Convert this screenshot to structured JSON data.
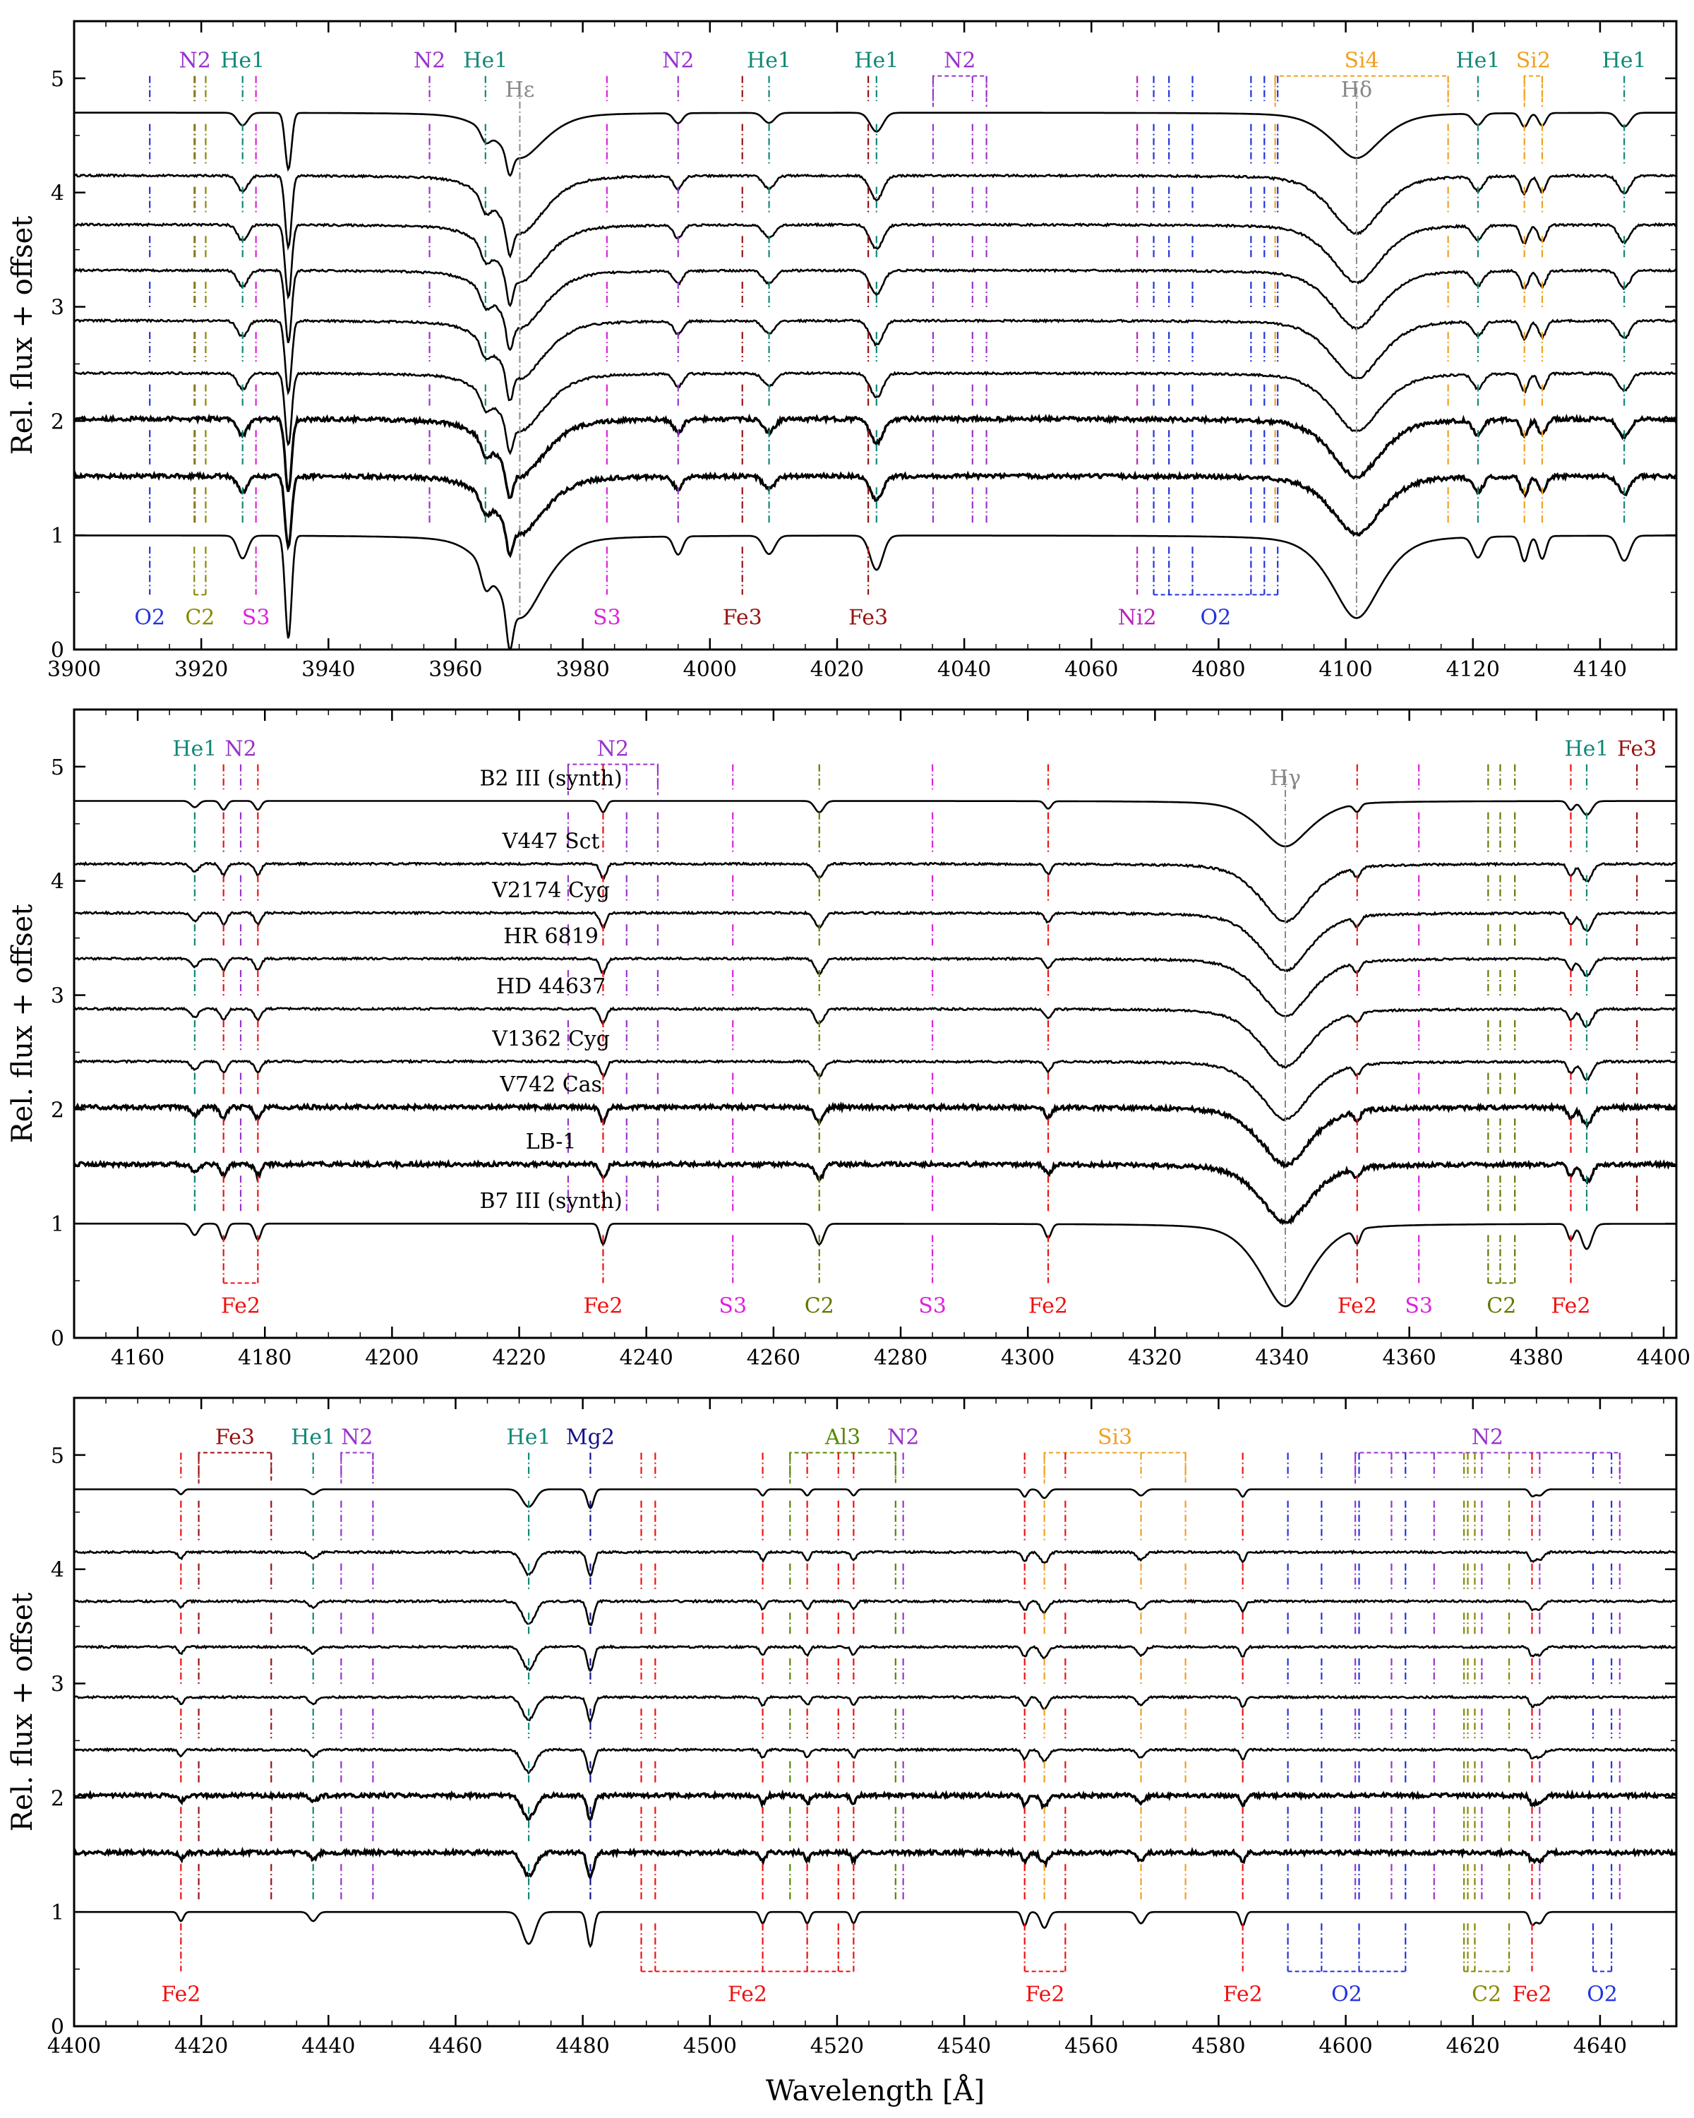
{
  "figure": {
    "x_axis_label": "Wavelength [Å]",
    "y_axis_label": "Rel. flux + offset"
  },
  "chart_data": [
    {
      "type": "line",
      "panel": "top",
      "xlim": [
        3900,
        4152
      ],
      "ylim": [
        0,
        5.5
      ],
      "xticks": [
        3900,
        3920,
        3940,
        3960,
        3980,
        4000,
        4020,
        4040,
        4060,
        4080,
        4100,
        4120,
        4140
      ],
      "yticks": [
        0,
        1,
        2,
        3,
        4,
        5
      ],
      "ylabel": "Rel. flux + offset",
      "spectrum_offsets": [
        4.7,
        4.15,
        3.72,
        3.32,
        2.88,
        2.42,
        2.02,
        1.52,
        1.0
      ],
      "balmer_lines": [
        {
          "label": "Hε",
          "x": 3970.1,
          "label_y": 4.95
        },
        {
          "label": "Hδ",
          "x": 4101.7,
          "label_y": 4.95
        }
      ],
      "top_labels": [
        {
          "label": "N2",
          "color": "#9933cc",
          "lines": [
            3919.0
          ]
        },
        {
          "label": "He1",
          "color": "#118877",
          "lines": [
            3926.5
          ]
        },
        {
          "label": "N2",
          "color": "#9933cc",
          "lines": [
            3955.9
          ]
        },
        {
          "label": "He1",
          "color": "#118877",
          "lines": [
            3964.7
          ]
        },
        {
          "label": "N2",
          "color": "#9933cc",
          "lines": [
            3995.0
          ]
        },
        {
          "label": "He1",
          "color": "#118877",
          "lines": [
            4009.3
          ]
        },
        {
          "label": "He1",
          "color": "#118877",
          "lines": [
            4026.2
          ]
        },
        {
          "label": "N2",
          "color": "#9933cc",
          "lines": [
            4035.1,
            4041.3,
            4043.5
          ]
        },
        {
          "label": "Si4",
          "color": "#f0a020",
          "lines": [
            4088.9,
            4116.1
          ]
        },
        {
          "label": "He1",
          "color": "#118877",
          "lines": [
            4120.8
          ]
        },
        {
          "label": "Si2",
          "color": "#f0a020",
          "lines": [
            4128.1,
            4130.9
          ]
        },
        {
          "label": "He1",
          "color": "#118877",
          "lines": [
            4143.8
          ]
        }
      ],
      "bottom_labels": [
        {
          "label": "O2",
          "color": "#2233dd",
          "lines": [
            3911.9
          ]
        },
        {
          "label": "C2",
          "color": "#888800",
          "lines": [
            3918.9,
            3920.7
          ]
        },
        {
          "label": "S3",
          "color": "#dd22dd",
          "lines": [
            3928.6
          ]
        },
        {
          "label": "S3",
          "color": "#dd22dd",
          "lines": [
            3983.8
          ]
        },
        {
          "label": "Fe3",
          "color": "#991111",
          "lines": [
            4005.1
          ]
        },
        {
          "label": "Fe3",
          "color": "#991111",
          "lines": [
            4024.9
          ]
        },
        {
          "label": "Ni2",
          "color": "#bb22bb",
          "lines": [
            4067.2
          ]
        },
        {
          "label": "O2",
          "color": "#2233dd",
          "lines": [
            4069.8,
            4072.2,
            4075.9,
            4085.1,
            4087.2,
            4089.3
          ]
        }
      ],
      "features": [
        {
          "x": 3933.7,
          "depth": 0.9,
          "width": 0.5
        },
        {
          "x": 3968.5,
          "depth": 0.35,
          "width": 0.5
        },
        {
          "x": 3926.5,
          "depth": 0.2,
          "width": 0.8
        },
        {
          "x": 3964.7,
          "depth": 0.18,
          "width": 0.7
        },
        {
          "x": 4009.3,
          "depth": 0.16,
          "width": 0.9
        },
        {
          "x": 4026.2,
          "depth": 0.3,
          "width": 1.0
        },
        {
          "x": 4120.8,
          "depth": 0.18,
          "width": 0.8
        },
        {
          "x": 4143.8,
          "depth": 0.22,
          "width": 0.9
        },
        {
          "x": 3995.0,
          "depth": 0.16,
          "width": 0.7
        },
        {
          "x": 4128.1,
          "depth": 0.22,
          "width": 0.6
        },
        {
          "x": 4130.9,
          "depth": 0.2,
          "width": 0.6
        }
      ]
    },
    {
      "type": "line",
      "panel": "middle",
      "xlim": [
        4150,
        4402
      ],
      "ylim": [
        0,
        5.5
      ],
      "xticks": [
        4160,
        4180,
        4200,
        4220,
        4240,
        4260,
        4280,
        4300,
        4320,
        4340,
        4360,
        4380,
        4400
      ],
      "yticks": [
        0,
        1,
        2,
        3,
        4,
        5
      ],
      "ylabel": "Rel. flux + offset",
      "spectrum_offsets": [
        4.7,
        4.15,
        3.72,
        3.32,
        2.88,
        2.42,
        2.02,
        1.52,
        1.0
      ],
      "star_names": [
        "B2 III (synth)",
        "V447 Sct",
        "V2174 Cyg",
        "HR 6819",
        "HD 44637",
        "V1362 Cyg",
        "V742 Cas",
        "LB-1",
        "B7 III (synth)"
      ],
      "balmer_lines": [
        {
          "label": "Hγ",
          "x": 4340.5,
          "label_y": 4.95
        }
      ],
      "top_labels": [
        {
          "label": "He1",
          "color": "#118877",
          "lines": [
            4168.97
          ]
        },
        {
          "label": "N2",
          "color": "#9933cc",
          "lines": [
            4176.2
          ]
        },
        {
          "label": "N2",
          "color": "#9933cc",
          "lines": [
            4227.7,
            4236.9,
            4241.8
          ]
        },
        {
          "label": "He1",
          "color": "#118877",
          "lines": [
            4387.9
          ]
        },
        {
          "label": "Fe3",
          "color": "#991111",
          "lines": [
            4395.8
          ]
        }
      ],
      "bottom_labels": [
        {
          "label": "Fe2",
          "color": "#ee1111",
          "lines": [
            4173.5,
            4178.9
          ]
        },
        {
          "label": "Fe2",
          "color": "#ee1111",
          "lines": [
            4233.2
          ]
        },
        {
          "label": "S3",
          "color": "#dd22dd",
          "lines": [
            4253.6
          ]
        },
        {
          "label": "C2",
          "color": "#667700",
          "lines": [
            4267.2
          ]
        },
        {
          "label": "S3",
          "color": "#dd22dd",
          "lines": [
            4285.0
          ]
        },
        {
          "label": "Fe2",
          "color": "#ee1111",
          "lines": [
            4303.2
          ]
        },
        {
          "label": "Fe2",
          "color": "#ee1111",
          "lines": [
            4351.8
          ]
        },
        {
          "label": "S3",
          "color": "#dd22dd",
          "lines": [
            4361.5
          ]
        },
        {
          "label": "C2",
          "color": "#667700",
          "lines": [
            4372.4,
            4374.3,
            4376.6
          ]
        },
        {
          "label": "Fe2",
          "color": "#ee1111",
          "lines": [
            4385.4
          ]
        }
      ],
      "features": [
        {
          "x": 4267.2,
          "depth": 0.18,
          "width": 0.7
        },
        {
          "x": 4387.9,
          "depth": 0.22,
          "width": 0.8
        },
        {
          "x": 4233.2,
          "depth": 0.18,
          "width": 0.5
        },
        {
          "x": 4173.5,
          "depth": 0.14,
          "width": 0.5
        },
        {
          "x": 4178.9,
          "depth": 0.14,
          "width": 0.5
        },
        {
          "x": 4303.2,
          "depth": 0.12,
          "width": 0.5
        },
        {
          "x": 4351.8,
          "depth": 0.12,
          "width": 0.5
        },
        {
          "x": 4385.4,
          "depth": 0.14,
          "width": 0.5
        },
        {
          "x": 4168.97,
          "depth": 0.1,
          "width": 0.6
        }
      ]
    },
    {
      "type": "line",
      "panel": "bottom",
      "xlim": [
        4400,
        4652
      ],
      "ylim": [
        0,
        5.5
      ],
      "xticks": [
        4400,
        4420,
        4440,
        4460,
        4480,
        4500,
        4520,
        4540,
        4560,
        4580,
        4600,
        4620,
        4640
      ],
      "yticks": [
        0,
        1,
        2,
        3,
        4,
        5
      ],
      "xlabel": "Wavelength [Å]",
      "ylabel": "Rel. flux + offset",
      "spectrum_offsets": [
        4.7,
        4.15,
        3.72,
        3.32,
        2.88,
        2.42,
        2.02,
        1.52,
        1.0
      ],
      "top_labels": [
        {
          "label": "Fe3",
          "color": "#991111",
          "lines": [
            4419.6,
            4431.0
          ]
        },
        {
          "label": "He1",
          "color": "#118877",
          "lines": [
            4437.6
          ]
        },
        {
          "label": "N2",
          "color": "#9933cc",
          "lines": [
            4442.0,
            4447.0
          ]
        },
        {
          "label": "He1",
          "color": "#118877",
          "lines": [
            4471.5
          ]
        },
        {
          "label": "Mg2",
          "color": "#111188",
          "lines": [
            4481.2
          ]
        },
        {
          "label": "Al3",
          "color": "#558800",
          "lines": [
            4512.6,
            4529.2
          ]
        },
        {
          "label": "N2",
          "color": "#9933cc",
          "lines": [
            4530.4
          ]
        },
        {
          "label": "Si3",
          "color": "#f0a020",
          "lines": [
            4552.6,
            4567.8,
            4574.8
          ]
        },
        {
          "label": "N2",
          "color": "#9933cc",
          "lines": [
            4601.5,
            4607.2,
            4613.9,
            4621.4,
            4630.5,
            4643.1
          ]
        }
      ],
      "bottom_labels": [
        {
          "label": "Fe2",
          "color": "#ee1111",
          "lines": [
            4416.8
          ]
        },
        {
          "label": "Fe2",
          "color": "#ee1111",
          "lines": [
            4489.2,
            4491.4,
            4508.3,
            4515.3,
            4520.2,
            4522.6
          ]
        },
        {
          "label": "Fe2",
          "color": "#ee1111",
          "lines": [
            4549.5,
            4555.9
          ]
        },
        {
          "label": "Fe2",
          "color": "#ee1111",
          "lines": [
            4583.8
          ]
        },
        {
          "label": "O2",
          "color": "#2233dd",
          "lines": [
            4590.9,
            4596.2,
            4602.1,
            4609.4
          ]
        },
        {
          "label": "C2",
          "color": "#888800",
          "lines": [
            4618.6,
            4619.2,
            4620.3,
            4625.7
          ]
        },
        {
          "label": "Fe2",
          "color": "#ee1111",
          "lines": [
            4629.3
          ]
        },
        {
          "label": "O2",
          "color": "#2233dd",
          "lines": [
            4638.9,
            4641.8
          ]
        }
      ],
      "features": [
        {
          "x": 4471.5,
          "depth": 0.28,
          "width": 1.0
        },
        {
          "x": 4481.2,
          "depth": 0.3,
          "width": 0.5
        },
        {
          "x": 4552.6,
          "depth": 0.14,
          "width": 0.6
        },
        {
          "x": 4567.8,
          "depth": 0.1,
          "width": 0.6
        },
        {
          "x": 4437.6,
          "depth": 0.08,
          "width": 0.6
        },
        {
          "x": 4508.3,
          "depth": 0.1,
          "width": 0.4
        },
        {
          "x": 4515.3,
          "depth": 0.1,
          "width": 0.4
        },
        {
          "x": 4522.6,
          "depth": 0.1,
          "width": 0.4
        },
        {
          "x": 4549.5,
          "depth": 0.12,
          "width": 0.4
        },
        {
          "x": 4583.8,
          "depth": 0.12,
          "width": 0.4
        },
        {
          "x": 4629.3,
          "depth": 0.1,
          "width": 0.4
        },
        {
          "x": 4630.5,
          "depth": 0.1,
          "width": 0.6
        },
        {
          "x": 4416.8,
          "depth": 0.08,
          "width": 0.4
        }
      ]
    }
  ]
}
